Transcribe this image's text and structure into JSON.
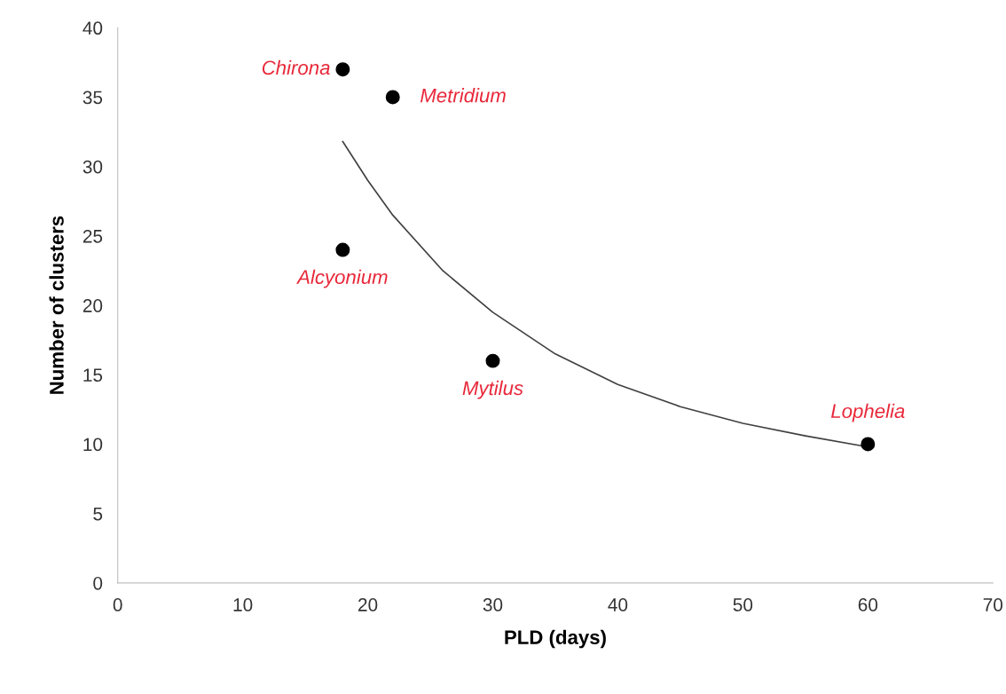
{
  "chart_data": {
    "type": "scatter",
    "xlabel": "PLD (days)",
    "ylabel": "Number of clusters",
    "xlim": [
      0,
      70
    ],
    "xticks": [
      0,
      10,
      20,
      30,
      40,
      50,
      60,
      70
    ],
    "ylim": [
      0,
      40
    ],
    "yticks": [
      0,
      5,
      10,
      15,
      20,
      25,
      30,
      35,
      40
    ],
    "grid": false,
    "legend": false,
    "marker": "circle",
    "series": [
      {
        "color": "#000000",
        "x": [
          18,
          22,
          18,
          30,
          60
        ],
        "values": [
          37,
          35,
          24,
          16,
          10
        ]
      },
      {
        "type": "line",
        "color": "#404040",
        "marker": "none",
        "x": [
          18,
          20,
          22,
          26,
          30,
          35,
          40,
          45,
          50,
          55,
          60
        ],
        "values": [
          31.8,
          29,
          26.5,
          22.5,
          19.5,
          16.5,
          14.3,
          12.7,
          11.5,
          10.6,
          9.8
        ]
      }
    ],
    "annotations": [
      {
        "text": "Chirona",
        "x": 18,
        "y": 37
      },
      {
        "text": "Metridium",
        "x": 22,
        "y": 35
      },
      {
        "text": "Alcyonium",
        "x": 18,
        "y": 24
      },
      {
        "text": "Mytilus",
        "x": 30,
        "y": 16
      },
      {
        "text": "Lophelia",
        "x": 60,
        "y": 10
      }
    ]
  }
}
